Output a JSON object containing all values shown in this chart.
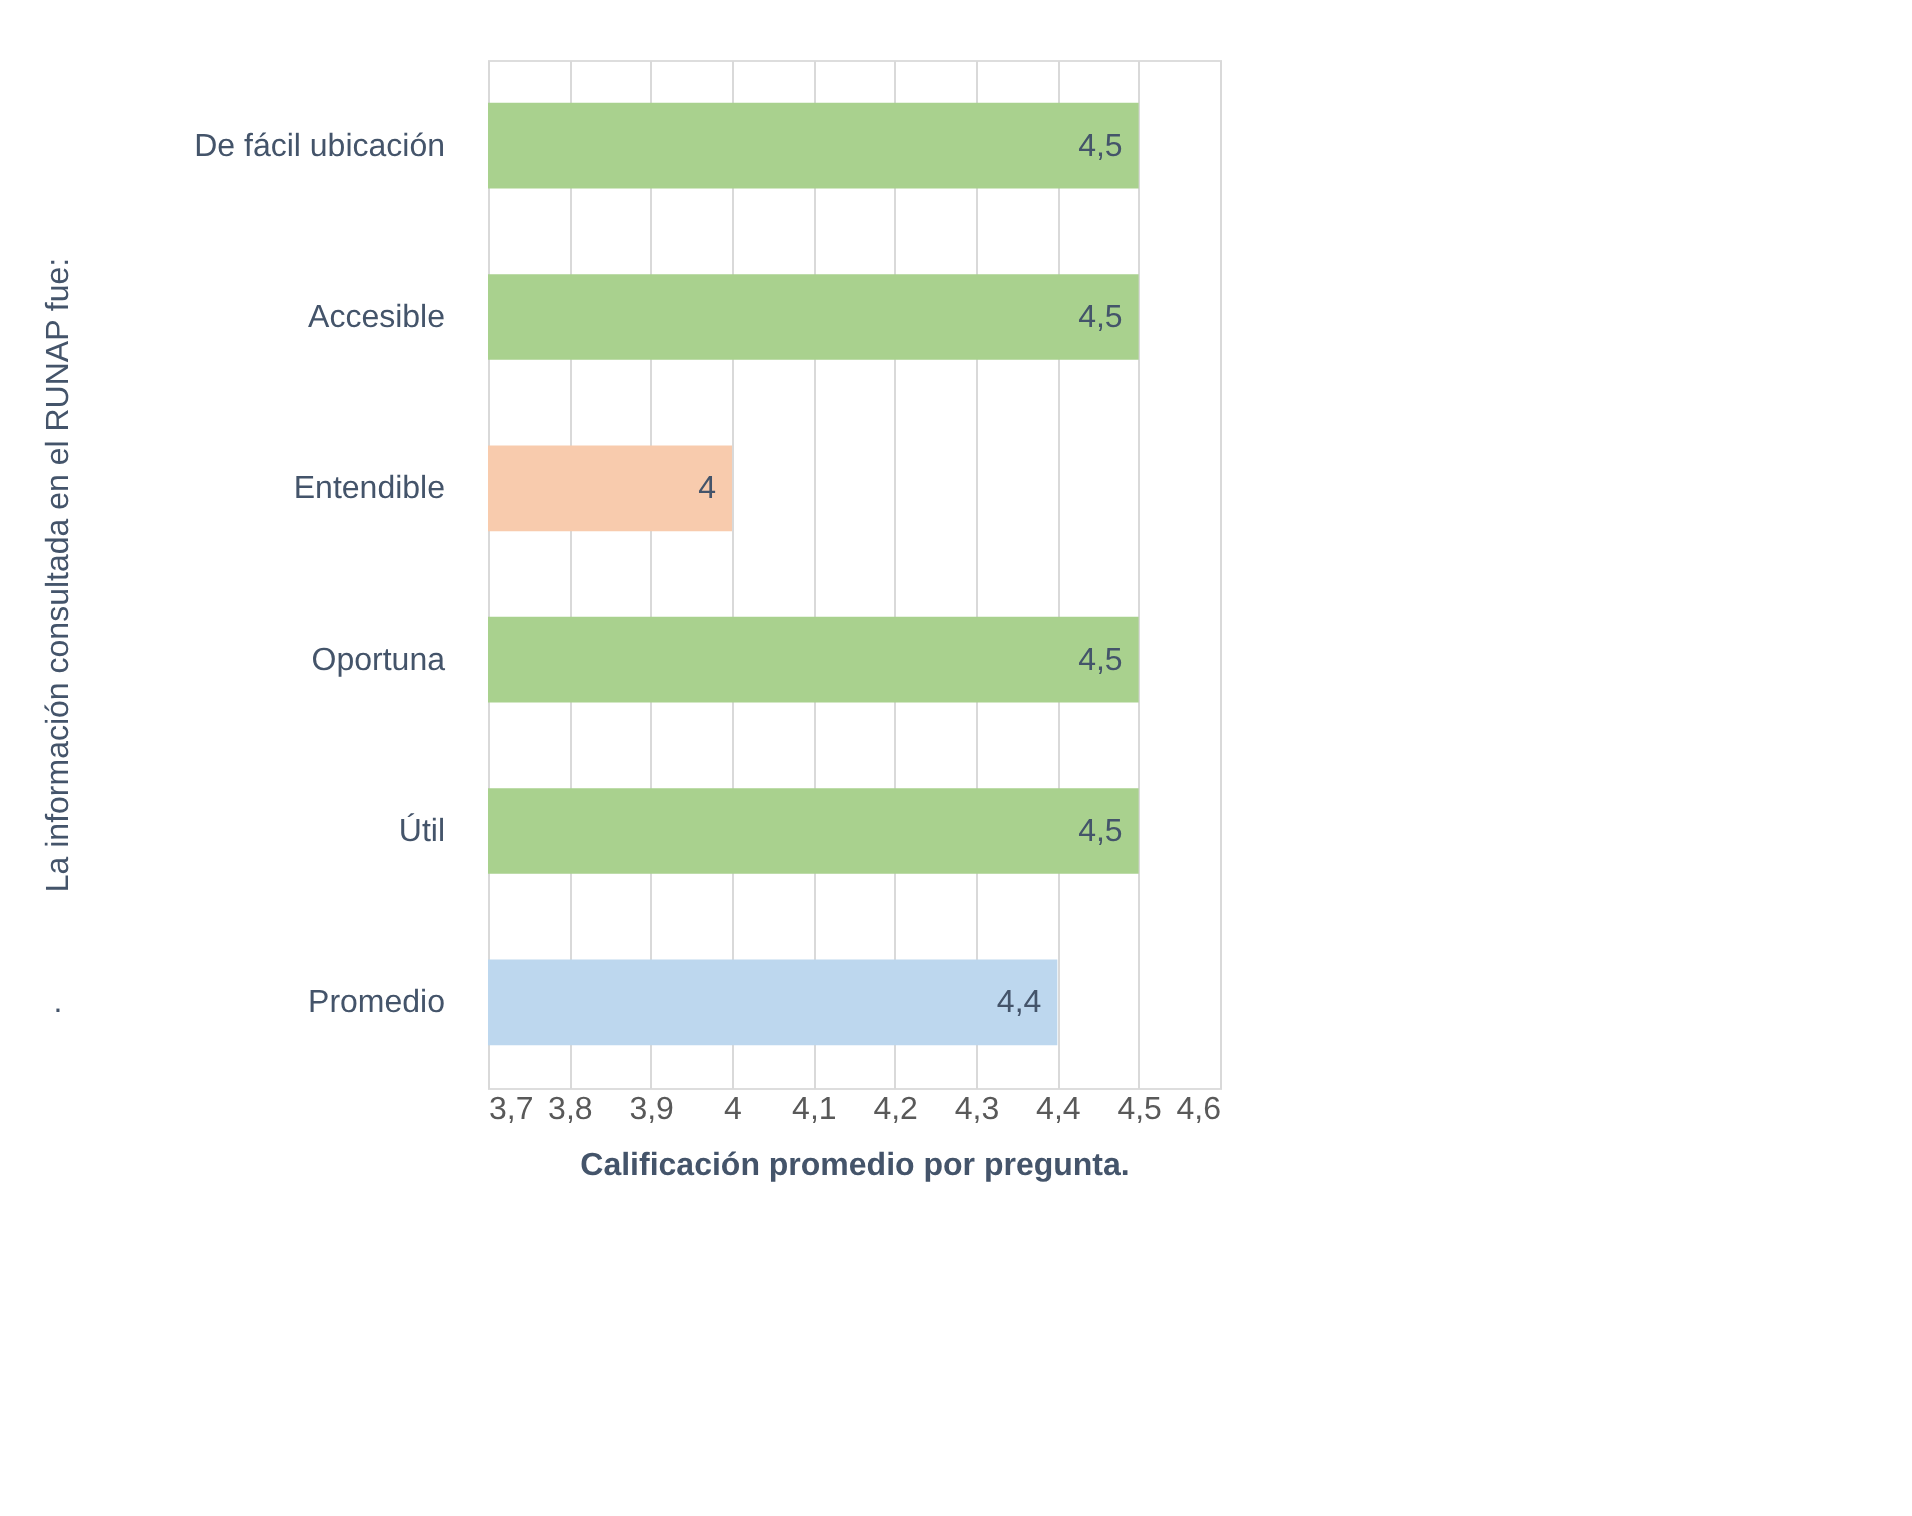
{
  "chart_data": {
    "type": "bar",
    "orientation": "horizontal",
    "categories": [
      "De fácil ubicación",
      "Accesible",
      "Entendible",
      "Oportuna",
      "Útil",
      "Promedio"
    ],
    "values": [
      4.5,
      4.5,
      4.0,
      4.5,
      4.5,
      4.4
    ],
    "colors": [
      "#a9d18e",
      "#a9d18e",
      "#f8cbad",
      "#a9d18e",
      "#a9d18e",
      "#bdd7ee"
    ],
    "value_labels": [
      "4,5",
      "4,5",
      "4",
      "4,5",
      "4,5",
      "4,4"
    ],
    "xlim": [
      3.7,
      4.6
    ],
    "xticks": [
      {
        "value": 3.7,
        "label": "3,7"
      },
      {
        "value": 3.8,
        "label": "3,8"
      },
      {
        "value": 3.9,
        "label": "3,9"
      },
      4,
      {
        "value": 4.1,
        "label": "4,1"
      },
      {
        "value": 4.2,
        "label": "4,2"
      },
      {
        "value": 4.3,
        "label": "4,3"
      },
      {
        "value": 4.4,
        "label": "4,4"
      },
      {
        "value": 4.5,
        "label": "4,5"
      },
      {
        "value": 4.6,
        "label": "4,6"
      }
    ],
    "xlabel": "Calificación promedio por pregunta.",
    "ylabel": "La información consultada en el RUNAP fue:",
    "annotations": [
      "."
    ],
    "grid": "x"
  }
}
